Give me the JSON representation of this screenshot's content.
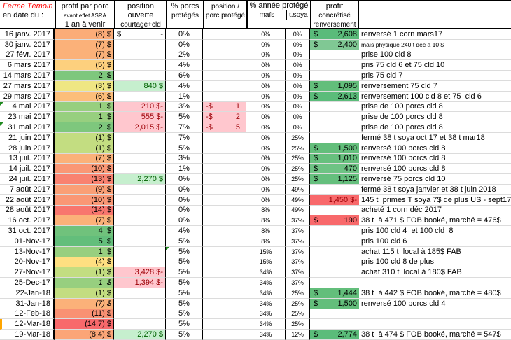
{
  "colors": {
    "accent_green": "#63BE7B",
    "accent_red": "#F8696B",
    "good_bg": "#C6EFCE",
    "good_text": "#006100",
    "bad_bg": "#FFC7CE",
    "bad_text": "#9C0006",
    "header_title": "#FF0000",
    "grid": "#DCDCDC",
    "border": "#000000",
    "marker": "#FFA500",
    "comment_indicator": "#1F8A1F"
  },
  "header": {
    "farm_line1": "Ferme Témoin",
    "farm_line2": "en date du :",
    "profit_pig_l1": "profit par porc",
    "profit_pig_l2": "avant effet ASRA",
    "profit_pig_l3": "1 an à venir",
    "open_pos_l1": "position ouverte",
    "open_pos_l2": "courtage+cld",
    "pct_pigs_l1": "% porcs",
    "pct_pigs_l2": "protégés",
    "pos_pig_l1": "position /",
    "pos_pig_l2": "porc protégé",
    "pct_year_title": "% année protégé",
    "pct_year_sub1": "maïs",
    "pct_year_sub2": "t.soya",
    "profit_real_l1": "profit",
    "profit_real_l2": "concrétisé",
    "profit_real_l3": "renversement"
  },
  "rows": [
    {
      "date": "16 janv. 2017",
      "pb": "(8) $",
      "pbg": "#FBAC78",
      "pos": {
        "t": "acct",
        "a": "$",
        "b": "-"
      },
      "pct": "0%",
      "mais": "0%",
      "soya": "0%",
      "real": {
        "t": "g",
        "d": "$",
        "v": "2,608",
        "bg": "#5ABB7A"
      },
      "note": "renversé 1 corn mars17"
    },
    {
      "date": "30 janv. 2017",
      "pb": "(7) $",
      "pbg": "#FBB179",
      "pct": "0%",
      "mais": "0%",
      "soya": "0%",
      "real": {
        "t": "g",
        "d": "$",
        "v": "2,400",
        "bg": "#80C894"
      },
      "note": "maïs physique 240 t déc à 10 $",
      "nsmall": true
    },
    {
      "date": "27 févr. 2017",
      "pb": "(7) $",
      "pbg": "#FBB179",
      "pct": "2%",
      "mais": "0%",
      "soya": "0%",
      "note": "prise 100 cld 8"
    },
    {
      "date": "6 mars 2017",
      "pb": "(5) $",
      "pbg": "#FDD07E",
      "pct": "4%",
      "mais": "0%",
      "soya": "0%",
      "note": "pris 75 cld 6 et 75 cld 10"
    },
    {
      "date": "14 mars 2017",
      "pb": "2  $",
      "pbg": "#7EC77D",
      "pct": "6%",
      "mais": "0%",
      "soya": "0%",
      "note": "pris 75 cld 7"
    },
    {
      "date": "27 mars 2017",
      "pb": "(3) $",
      "pbg": "#EFE683",
      "pos": {
        "t": "green",
        "v": "840 $"
      },
      "pct": "4%",
      "mais": "0%",
      "soya": "0%",
      "real": {
        "t": "g",
        "d": "$",
        "v": "1,095",
        "bg": "#63BE7B"
      },
      "note": "renversement 75 cld 7"
    },
    {
      "date": "29 mars 2017",
      "pb": "(6) $",
      "pbg": "#FCBE7A",
      "pct": "1%",
      "mais": "0%",
      "soya": "0%",
      "real": {
        "t": "g",
        "d": "$",
        "v": "2,613",
        "bg": "#5BBC7A"
      },
      "note": "renversement 100 cld 8 et 75  cld 6"
    },
    {
      "date": "4 mai 2017",
      "tri": true,
      "pb": "1  $",
      "pbg": "#97CF7F",
      "pos": {
        "t": "pink",
        "v": "210 $-"
      },
      "pct": "3%",
      "ppp": {
        "a": "-$",
        "b": "1"
      },
      "mais": "0%",
      "soya": "0%",
      "note": "prise de 100 porcs cld 8"
    },
    {
      "date": "23 mai 2017",
      "pb": "1  $",
      "pbg": "#97CF7F",
      "pos": {
        "t": "pink",
        "v": "555 $-"
      },
      "pct": "5%",
      "ppp": {
        "a": "-$",
        "b": "2"
      },
      "mais": "0%",
      "soya": "0%",
      "note": "prise de 100 porcs cld 8"
    },
    {
      "date": "31 mai 2017",
      "tri": true,
      "pb": "2  $",
      "pbg": "#7EC77D",
      "pos": {
        "t": "pink",
        "v": "2,015 $-"
      },
      "pct": "7%",
      "ppp": {
        "a": "-$",
        "b": "5"
      },
      "mais": "0%",
      "soya": "0%",
      "note": "prise de 100 porcs cld 8"
    },
    {
      "date": "21 juin 2017",
      "pb": "(1) $",
      "pbg": "#C3DD81",
      "pct": "7%",
      "mais": "0%",
      "soya": "25%",
      "note": "fermé 38 t soya oct 17 et 38 t mar18"
    },
    {
      "date": "28 juin 2017",
      "pb": "(1) $",
      "pbg": "#C3DD81",
      "pct": "5%",
      "mais": "0%",
      "soya": "25%",
      "real": {
        "t": "g",
        "d": "$",
        "v": "1,500",
        "bg": "#63BE7B"
      },
      "note": "renversé 100 porcs cld 8"
    },
    {
      "date": "13 juil. 2017",
      "pb": "(7) $",
      "pbg": "#FBB179",
      "pct": "3%",
      "mais": "0%",
      "soya": "25%",
      "real": {
        "t": "g",
        "d": "$",
        "v": "1,010",
        "bg": "#67C07E"
      },
      "note": "renversé 100 porcs cld 8"
    },
    {
      "date": "14 juil. 2017",
      "pb": "(10) $",
      "pbg": "#FA9775",
      "pct": "1%",
      "mais": "0%",
      "soya": "25%",
      "real": {
        "t": "g",
        "d": "$",
        "v": "470",
        "bg": "#6EC384"
      },
      "note": "renversé 100 porcs cld 8"
    },
    {
      "date": "24 juil. 2017",
      "pb": "(13) $",
      "pbg": "#F98270",
      "pos": {
        "t": "green",
        "v": "2,270 $"
      },
      "pct": "0%",
      "mais": "0%",
      "soya": "25%",
      "real": {
        "t": "g",
        "d": "$",
        "v": "1,125",
        "bg": "#65BF7D"
      },
      "note": "renversé 75 porcs cld 10"
    },
    {
      "date": "7 août 2017",
      "pb": "(9) $",
      "pbg": "#FA9F76",
      "pct": "0%",
      "mais": "0%",
      "soya": "49%",
      "note": "fermé 38 t soya janvier et 38 t juin 2018"
    },
    {
      "date": "22 août 2017",
      "pb": "(10) $",
      "pbg": "#FA9775",
      "pct": "0%",
      "mais": "0%",
      "soya": "49%",
      "real": {
        "t": "rn",
        "v": "1,450 $-"
      },
      "note": "145 t  primes T soya 7$ de plus US - sept17"
    },
    {
      "date": "28 août 2017",
      "pb": "(14) $",
      "pbg": "#F8766E",
      "pct": "0%",
      "mais": "8%",
      "soya": "49%",
      "note": "acheté 1 corn déc 2017"
    },
    {
      "date": "16 oct. 2017",
      "pb": "(7) $",
      "pbg": "#FBB179",
      "pct": "0%",
      "mais": "8%",
      "soya": "37%",
      "real": {
        "t": "r",
        "d": "$",
        "v": "190"
      },
      "note": "38 t  à 471 $ FOB booké, marché = 476$"
    },
    {
      "date": "31 oct. 2017",
      "pb": "4  $",
      "pbg": "#70C27C",
      "pct": "4%",
      "mais": "8%",
      "soya": "37%",
      "note": "pris 100 cld 4  et 100 cld  8"
    },
    {
      "date": "01-Nov-17",
      "pb": "5  $",
      "pbg": "#63BE7B",
      "pct": "5%",
      "mais": "8%",
      "soya": "37%",
      "note": "pris 100 cld 6"
    },
    {
      "date": "13-Nov-17",
      "pb": "1  $",
      "pbg": "#97CF7F",
      "pct": "5%",
      "ptri": true,
      "mais": "15%",
      "soya": "37%",
      "note": "achat 115 t  local à 185$ FAB"
    },
    {
      "date": "20-Nov-17",
      "pb": "(4) $",
      "pbg": "#FEDF81",
      "pct": "5%",
      "mais": "15%",
      "soya": "37%",
      "note": "pris 100 cld 8 de plus"
    },
    {
      "date": "27-Nov-17",
      "pb": "(1) $",
      "pbg": "#C3DD81",
      "pos": {
        "t": "pink",
        "v": "3,428 $-"
      },
      "pct": "5%",
      "mais": "34%",
      "soya": "37%",
      "note": "achat 310 t  local à 180$ FAB"
    },
    {
      "date": "25-Dec-17",
      "pb": "1  $",
      "pit": true,
      "pbg": "#97CF7F",
      "pos": {
        "t": "pink",
        "v": "1,394 $-"
      },
      "pct": "5%",
      "mais": "34%",
      "soya": "37%",
      "note": ""
    },
    {
      "date": "22-Jan-18",
      "pb": "(1) $",
      "pbg": "#C3DD81",
      "pct": "5%",
      "mais": "34%",
      "soya": "25%",
      "real": {
        "t": "g",
        "d": "$",
        "v": "1,444",
        "bg": "#63BE7B"
      },
      "note": "38 t  à 442 $ FOB booké, marché = 480$"
    },
    {
      "date": "31-Jan-18",
      "pb": "(7) $",
      "pit": true,
      "pbg": "#FBB179",
      "pct": "5%",
      "mais": "34%",
      "soya": "25%",
      "real": {
        "t": "g",
        "d": "$",
        "v": "1,500",
        "bg": "#63BE7B"
      },
      "note": "renversé 100 porcs cld 4"
    },
    {
      "date": "12-Feb-18",
      "pb": "(11) $",
      "pbg": "#F99173",
      "pct": "5%",
      "mais": "34%",
      "soya": "25%",
      "note": ""
    },
    {
      "date": "12-Mar-18",
      "mark": true,
      "pb": "(14.7) $",
      "pbg": "#F8696B",
      "pct": "5%",
      "mais": "34%",
      "soya": "25%",
      "note": ""
    },
    {
      "date": "19-Mar-18",
      "pb": "(8.4) $",
      "pbg": "#FBA577",
      "pos": {
        "t": "green",
        "v": "2,270 $"
      },
      "pct": "5%",
      "mais": "34%",
      "soya": "12%",
      "real": {
        "t": "g",
        "d": "$",
        "v": "2,774",
        "bg": "#5BBC7A"
      },
      "note": "38 t  à 474 $ FOB booké, marché = 547$"
    }
  ]
}
